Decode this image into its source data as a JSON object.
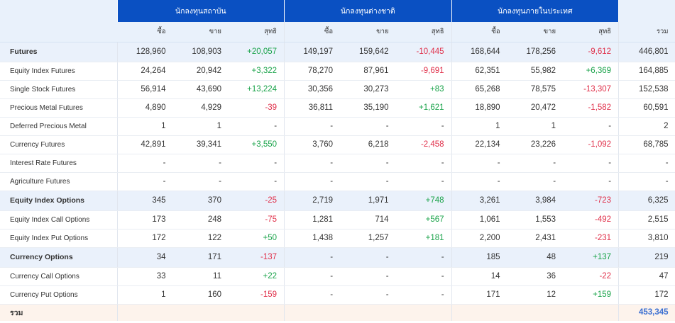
{
  "groups": [
    "นักลงทุนสถาบัน",
    "นักลงทุนต่างชาติ",
    "นักลงทุนภายในประเทศ"
  ],
  "sub_headers": [
    "ซื้อ",
    "ขาย",
    "สุทธิ",
    "ซื้อ",
    "ขาย",
    "สุทธิ",
    "ซื้อ",
    "ขาย",
    "สุทธิ",
    "รวม"
  ],
  "rows": [
    {
      "label": "Futures",
      "main": true,
      "values": [
        "128,960",
        "108,903",
        "+20,057",
        "149,197",
        "159,642",
        "-10,445",
        "168,644",
        "178,256",
        "-9,612",
        "446,801"
      ]
    },
    {
      "label": "Equity Index Futures",
      "main": false,
      "values": [
        "24,264",
        "20,942",
        "+3,322",
        "78,270",
        "87,961",
        "-9,691",
        "62,351",
        "55,982",
        "+6,369",
        "164,885"
      ]
    },
    {
      "label": "Single Stock Futures",
      "main": false,
      "values": [
        "56,914",
        "43,690",
        "+13,224",
        "30,356",
        "30,273",
        "+83",
        "65,268",
        "78,575",
        "-13,307",
        "152,538"
      ]
    },
    {
      "label": "Precious Metal Futures",
      "main": false,
      "values": [
        "4,890",
        "4,929",
        "-39",
        "36,811",
        "35,190",
        "+1,621",
        "18,890",
        "20,472",
        "-1,582",
        "60,591"
      ]
    },
    {
      "label": "Deferred Precious Metal",
      "main": false,
      "values": [
        "1",
        "1",
        "-",
        "-",
        "-",
        "-",
        "1",
        "1",
        "-",
        "2"
      ]
    },
    {
      "label": "Currency Futures",
      "main": false,
      "values": [
        "42,891",
        "39,341",
        "+3,550",
        "3,760",
        "6,218",
        "-2,458",
        "22,134",
        "23,226",
        "-1,092",
        "68,785"
      ]
    },
    {
      "label": "Interest Rate Futures",
      "main": false,
      "values": [
        "-",
        "-",
        "-",
        "-",
        "-",
        "-",
        "-",
        "-",
        "-",
        "-"
      ]
    },
    {
      "label": "Agriculture Futures",
      "main": false,
      "values": [
        "-",
        "-",
        "-",
        "-",
        "-",
        "-",
        "-",
        "-",
        "-",
        "-"
      ]
    },
    {
      "label": "Equity Index Options",
      "main": true,
      "values": [
        "345",
        "370",
        "-25",
        "2,719",
        "1,971",
        "+748",
        "3,261",
        "3,984",
        "-723",
        "6,325"
      ]
    },
    {
      "label": "Equity Index Call Options",
      "main": false,
      "values": [
        "173",
        "248",
        "-75",
        "1,281",
        "714",
        "+567",
        "1,061",
        "1,553",
        "-492",
        "2,515"
      ]
    },
    {
      "label": "Equity Index Put Options",
      "main": false,
      "values": [
        "172",
        "122",
        "+50",
        "1,438",
        "1,257",
        "+181",
        "2,200",
        "2,431",
        "-231",
        "3,810"
      ]
    },
    {
      "label": "Currency Options",
      "main": true,
      "values": [
        "34",
        "171",
        "-137",
        "-",
        "-",
        "-",
        "185",
        "48",
        "+137",
        "219"
      ]
    },
    {
      "label": "Currency Call Options",
      "main": false,
      "values": [
        "33",
        "11",
        "+22",
        "-",
        "-",
        "-",
        "14",
        "36",
        "-22",
        "47"
      ]
    },
    {
      "label": "Currency Put Options",
      "main": false,
      "values": [
        "1",
        "160",
        "-159",
        "-",
        "-",
        "-",
        "171",
        "12",
        "+159",
        "172"
      ]
    }
  ],
  "total": {
    "label": "รวม",
    "value": "453,345"
  },
  "colors": {
    "header_blue": "#0a50c2",
    "positive": "#1aa34a",
    "negative": "#e0304a",
    "total_value": "#3b6fd1"
  }
}
